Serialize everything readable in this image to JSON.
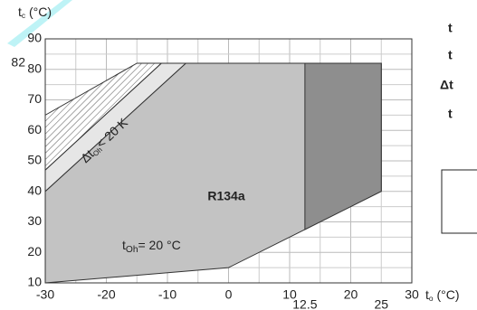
{
  "chart_data": {
    "type": "envelope",
    "y_label": {
      "main": "t",
      "sub": "c",
      "rest": " (°C)"
    },
    "x_label": {
      "main": "t",
      "sub": "o",
      "rest": " (°C)"
    },
    "refrigerant": "R134a",
    "annotation": {
      "main": "t",
      "sub": "Oh",
      "rest": "= 20 °C"
    },
    "band_label": {
      "main": "Δt",
      "sub": "Oh",
      "rest": "< 20 K"
    },
    "side_labels": [
      "t",
      "t",
      "Δt",
      "t"
    ],
    "xlim": [
      -30,
      30
    ],
    "ylim": [
      10,
      90
    ],
    "xticks": [
      -30,
      -20,
      -10,
      0,
      10,
      20,
      30
    ],
    "yticks": [
      10,
      20,
      30,
      40,
      50,
      60,
      70,
      80,
      90
    ],
    "xticks_minor": [
      12.5,
      25
    ],
    "yticks_minor": [
      82
    ],
    "grid": true,
    "regions": [
      {
        "color": "#c3c3c3",
        "x": [
          -30,
          0,
          25,
          25,
          -7,
          -30
        ],
        "values": [
          10,
          15,
          40,
          82,
          82,
          40
        ]
      },
      {
        "color": "#e6e6e6",
        "x": [
          -30,
          -7,
          -11,
          -30
        ],
        "values": [
          40,
          82,
          82,
          47
        ]
      },
      {
        "color": "#ffffff",
        "pattern": "hatch",
        "x": [
          -30,
          -11,
          -15,
          -30
        ],
        "values": [
          47,
          82,
          82,
          65
        ]
      },
      {
        "color": "#8e8e8e",
        "x": [
          12.5,
          25,
          25,
          12.5
        ],
        "values": [
          27.5,
          40,
          82,
          82
        ]
      }
    ]
  }
}
